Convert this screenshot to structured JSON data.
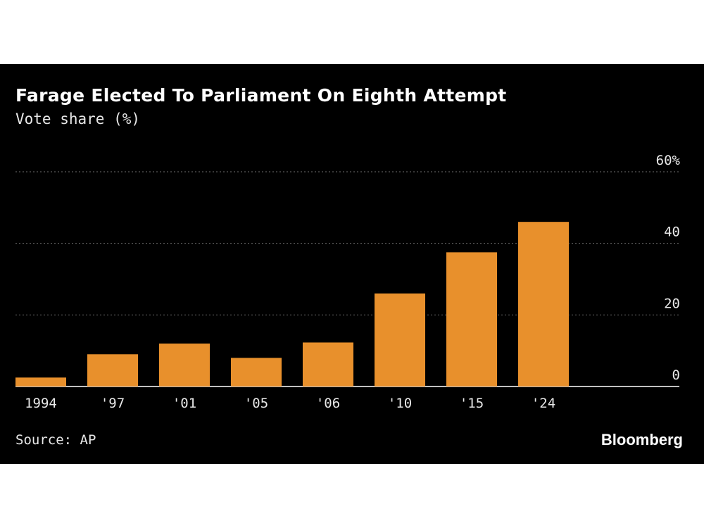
{
  "chart_data": {
    "type": "bar",
    "title": "Farage Elected To Parliament On Eighth Attempt",
    "subtitle": "Vote share (%)",
    "categories": [
      "1994",
      "'97",
      "'01",
      "'05",
      "'06",
      "'10",
      "'15",
      "'24"
    ],
    "values": [
      2.5,
      9.0,
      12.0,
      8.0,
      12.3,
      26.0,
      37.5,
      46.0
    ],
    "ylim": [
      0,
      60
    ],
    "yticks": [
      0,
      20,
      40,
      60
    ],
    "ytick_labels": [
      "0",
      "20",
      "40",
      "60%"
    ],
    "grid": true,
    "source": "Source: AP",
    "brand": "Bloomberg",
    "colors": {
      "bar": "#e8902c",
      "background": "#000000",
      "grid": "#6e6e6e",
      "text": "#ffffff"
    }
  }
}
